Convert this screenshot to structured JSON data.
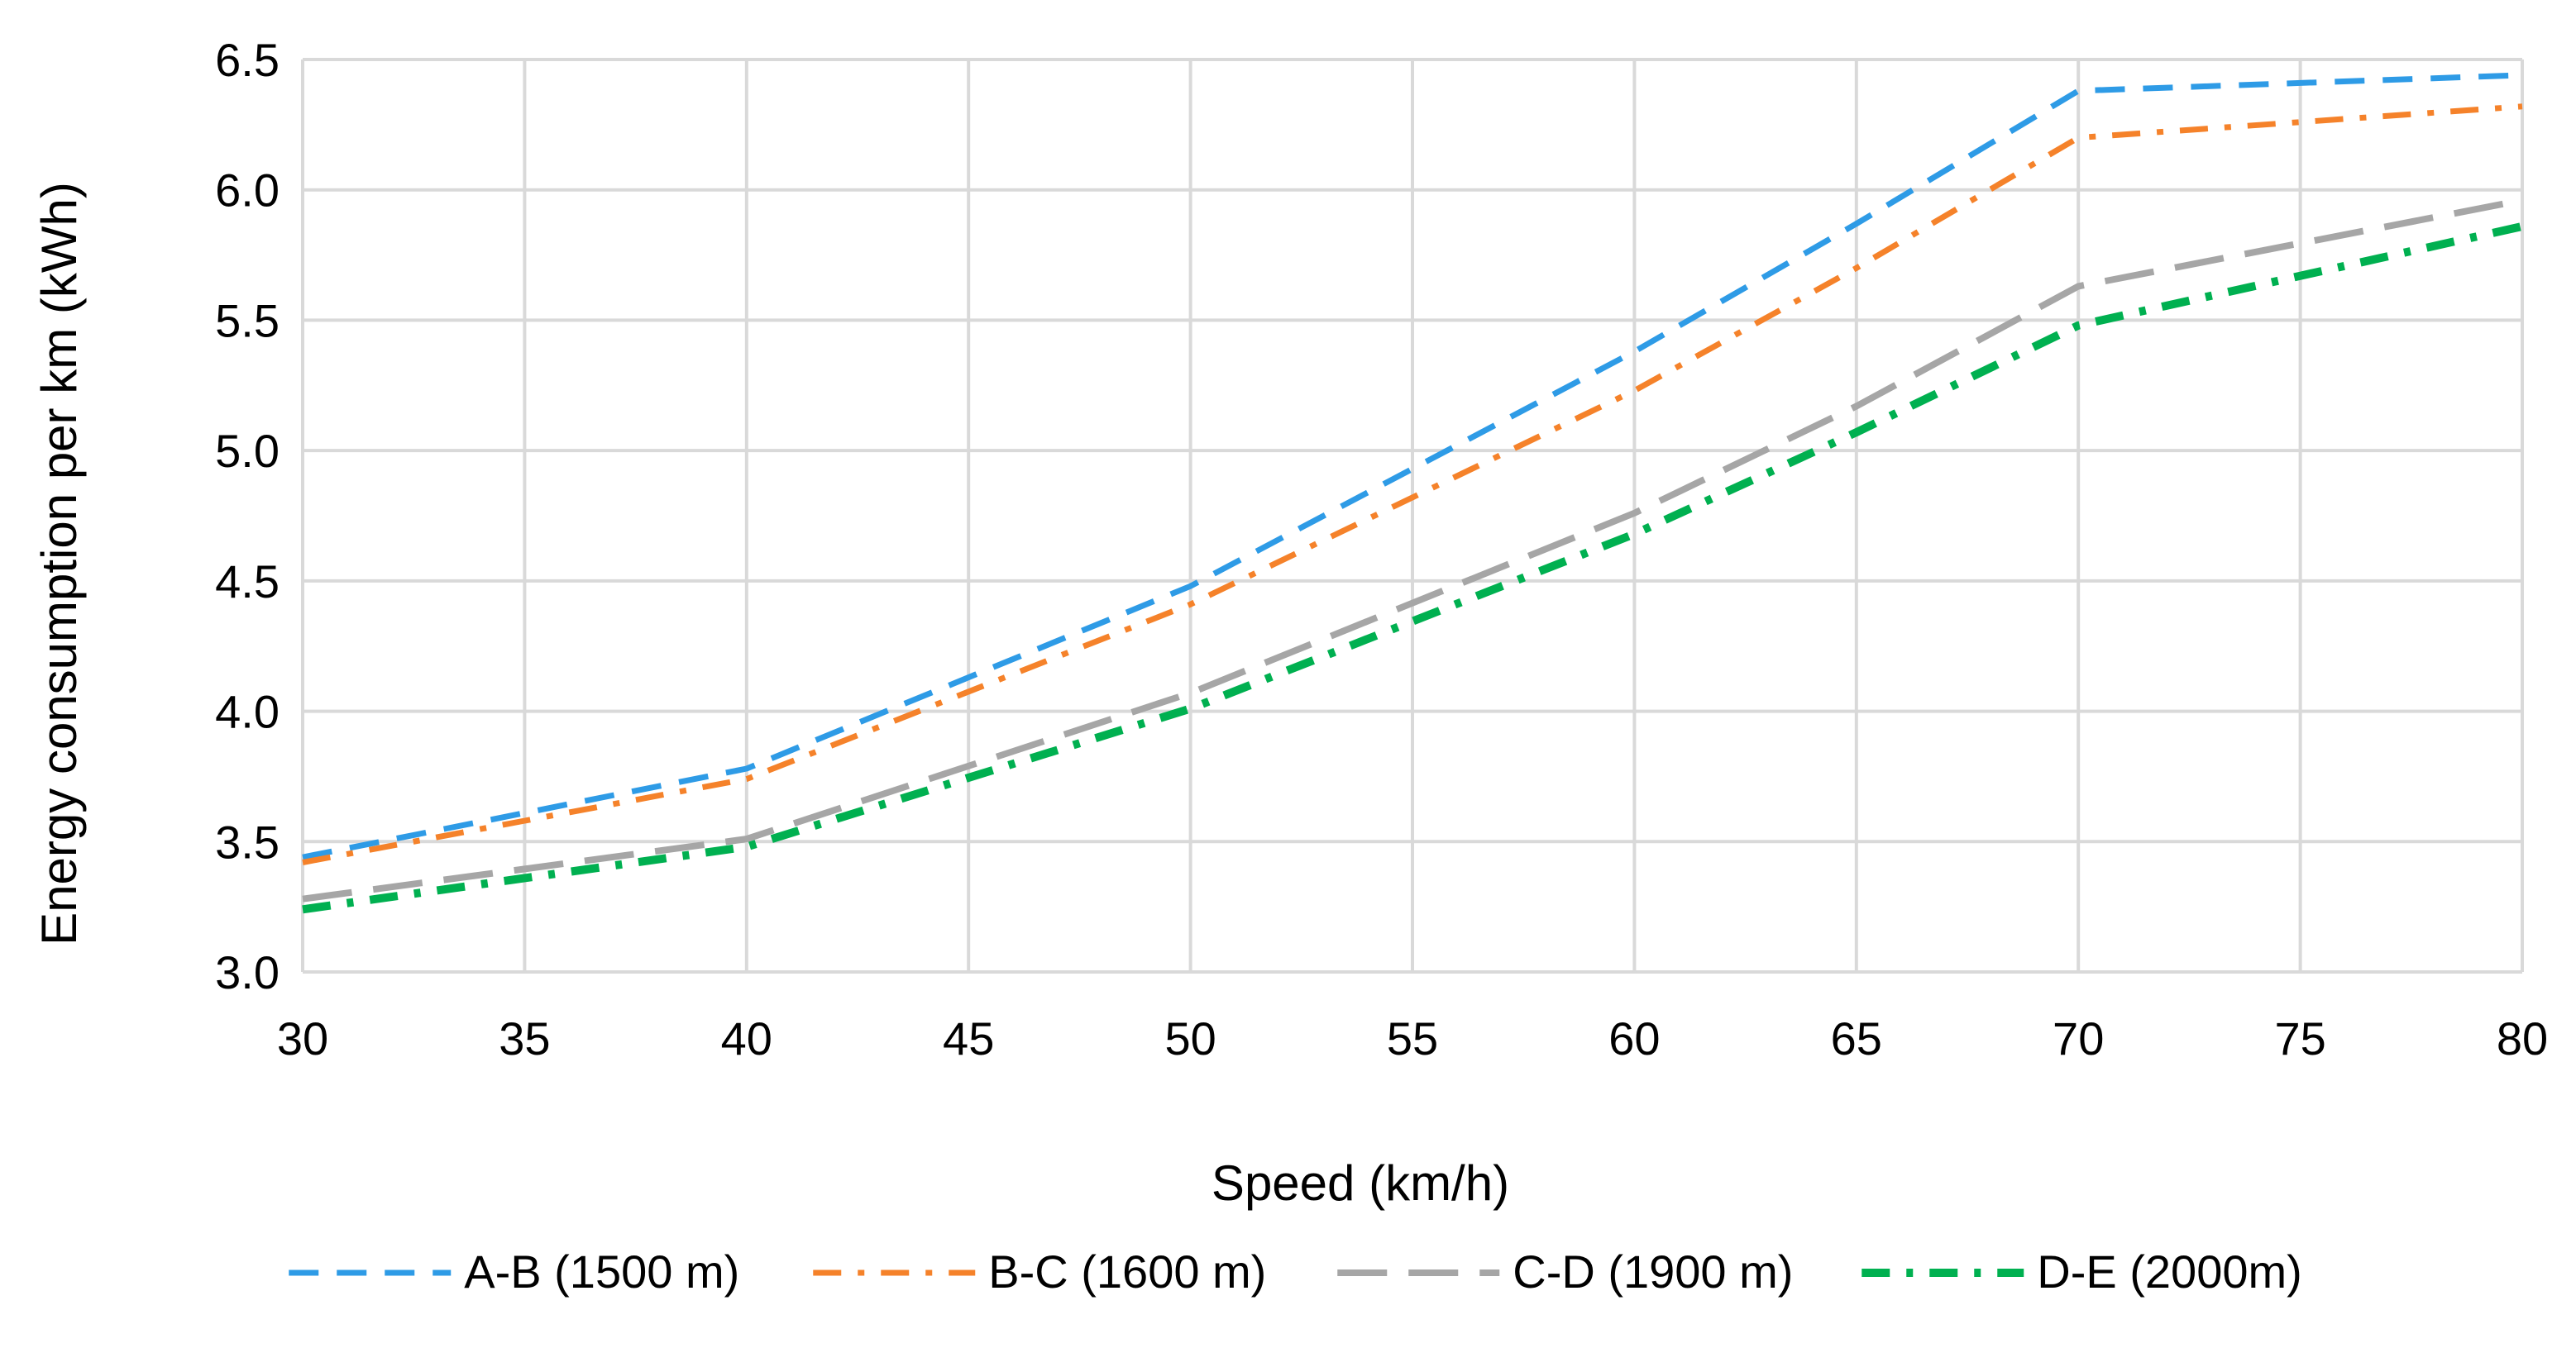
{
  "chart_data": {
    "type": "line",
    "title": "",
    "xlabel": "Speed (km/h)",
    "ylabel": "Energy consumption per km  (kWh)",
    "x": [
      30,
      40,
      50,
      60,
      65,
      70,
      80
    ],
    "xlim": [
      30,
      80
    ],
    "ylim": [
      3.0,
      6.5
    ],
    "xticks": [
      "30",
      "35",
      "40",
      "45",
      "50",
      "55",
      "60",
      "65",
      "70",
      "75",
      "80"
    ],
    "yticks": [
      "3.0",
      "3.5",
      "4.0",
      "4.5",
      "5.0",
      "5.5",
      "6.0",
      "6.5"
    ],
    "grid": true,
    "legend_position": "bottom",
    "series": [
      {
        "name": "A-B (1500 m)",
        "color": "#2e9be6",
        "dash": "dashed",
        "values": [
          3.44,
          3.78,
          4.48,
          5.38,
          5.87,
          6.38,
          6.44
        ]
      },
      {
        "name": "B-C (1600 m)",
        "color": "#f5822a",
        "dash": "dash-dot",
        "values": [
          3.42,
          3.74,
          4.41,
          5.23,
          5.7,
          6.2,
          6.32
        ]
      },
      {
        "name": "C-D (1900 m)",
        "color": "#a6a6a6",
        "dash": "long-dash",
        "values": [
          3.28,
          3.51,
          4.07,
          4.76,
          5.17,
          5.63,
          5.96
        ]
      },
      {
        "name": "D-E (2000m)",
        "color": "#00b050",
        "dash": "dash-dot",
        "values": [
          3.24,
          3.48,
          4.01,
          4.68,
          5.07,
          5.48,
          5.86
        ]
      }
    ]
  }
}
